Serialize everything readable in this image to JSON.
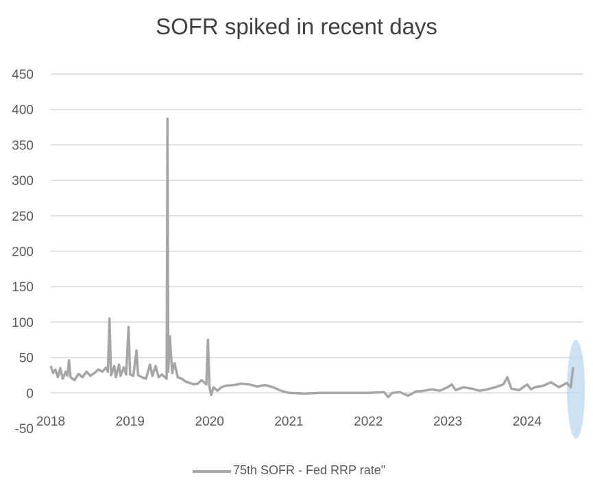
{
  "chart_data": {
    "type": "line",
    "title": "SOFR spiked in recent days",
    "xlabel": "",
    "ylabel": "",
    "ylim": [
      -50,
      450
    ],
    "yticks": [
      -50,
      0,
      50,
      100,
      150,
      200,
      250,
      300,
      350,
      400,
      450
    ],
    "xlim": [
      2018,
      2024.7
    ],
    "xticks": [
      "2018",
      "2019",
      "2020",
      "2021",
      "2022",
      "2023",
      "2024"
    ],
    "grid": true,
    "legend_position": "bottom",
    "series": [
      {
        "name": "75th SOFR - Fed RRP rate\"",
        "color": "#a6a6a6",
        "points": [
          [
            2018.0,
            38
          ],
          [
            2018.03,
            28
          ],
          [
            2018.06,
            33
          ],
          [
            2018.09,
            22
          ],
          [
            2018.12,
            35
          ],
          [
            2018.15,
            20
          ],
          [
            2018.19,
            30
          ],
          [
            2018.21,
            24
          ],
          [
            2018.23,
            46
          ],
          [
            2018.25,
            22
          ],
          [
            2018.3,
            18
          ],
          [
            2018.35,
            27
          ],
          [
            2018.4,
            22
          ],
          [
            2018.45,
            30
          ],
          [
            2018.5,
            24
          ],
          [
            2018.55,
            28
          ],
          [
            2018.6,
            33
          ],
          [
            2018.65,
            30
          ],
          [
            2018.7,
            36
          ],
          [
            2018.72,
            30
          ],
          [
            2018.74,
            105
          ],
          [
            2018.76,
            25
          ],
          [
            2018.8,
            38
          ],
          [
            2018.82,
            22
          ],
          [
            2018.86,
            40
          ],
          [
            2018.88,
            24
          ],
          [
            2018.92,
            36
          ],
          [
            2018.95,
            26
          ],
          [
            2018.98,
            93
          ],
          [
            2019.0,
            26
          ],
          [
            2019.04,
            24
          ],
          [
            2019.08,
            60
          ],
          [
            2019.1,
            25
          ],
          [
            2019.15,
            22
          ],
          [
            2019.2,
            20
          ],
          [
            2019.25,
            40
          ],
          [
            2019.28,
            24
          ],
          [
            2019.32,
            38
          ],
          [
            2019.36,
            22
          ],
          [
            2019.4,
            26
          ],
          [
            2019.44,
            22
          ],
          [
            2019.46,
            20
          ],
          [
            2019.47,
            387
          ],
          [
            2019.48,
            30
          ],
          [
            2019.5,
            80
          ],
          [
            2019.53,
            28
          ],
          [
            2019.56,
            42
          ],
          [
            2019.6,
            22
          ],
          [
            2019.65,
            20
          ],
          [
            2019.7,
            16
          ],
          [
            2019.75,
            14
          ],
          [
            2019.8,
            12
          ],
          [
            2019.85,
            13
          ],
          [
            2019.9,
            18
          ],
          [
            2019.96,
            12
          ],
          [
            2019.98,
            75
          ],
          [
            2020.0,
            8
          ],
          [
            2020.02,
            -3
          ],
          [
            2020.05,
            8
          ],
          [
            2020.1,
            3
          ],
          [
            2020.15,
            8
          ],
          [
            2020.2,
            10
          ],
          [
            2020.3,
            11
          ],
          [
            2020.4,
            13
          ],
          [
            2020.5,
            12
          ],
          [
            2020.6,
            9
          ],
          [
            2020.7,
            11
          ],
          [
            2020.8,
            8
          ],
          [
            2020.9,
            3
          ],
          [
            2021.0,
            0
          ],
          [
            2021.2,
            -1
          ],
          [
            2021.4,
            0
          ],
          [
            2021.6,
            0
          ],
          [
            2021.8,
            0
          ],
          [
            2022.0,
            0
          ],
          [
            2022.2,
            1
          ],
          [
            2022.25,
            -6
          ],
          [
            2022.3,
            0
          ],
          [
            2022.4,
            1
          ],
          [
            2022.5,
            -4
          ],
          [
            2022.6,
            2
          ],
          [
            2022.7,
            3
          ],
          [
            2022.8,
            5
          ],
          [
            2022.9,
            3
          ],
          [
            2023.0,
            8
          ],
          [
            2023.05,
            12
          ],
          [
            2023.1,
            4
          ],
          [
            2023.2,
            8
          ],
          [
            2023.3,
            6
          ],
          [
            2023.4,
            3
          ],
          [
            2023.5,
            5
          ],
          [
            2023.6,
            8
          ],
          [
            2023.7,
            12
          ],
          [
            2023.75,
            22
          ],
          [
            2023.8,
            6
          ],
          [
            2023.9,
            4
          ],
          [
            2024.0,
            12
          ],
          [
            2024.05,
            5
          ],
          [
            2024.1,
            8
          ],
          [
            2024.2,
            10
          ],
          [
            2024.3,
            15
          ],
          [
            2024.4,
            8
          ],
          [
            2024.5,
            14
          ],
          [
            2024.55,
            8
          ],
          [
            2024.58,
            36
          ]
        ]
      }
    ],
    "highlight": {
      "x": 2024.58,
      "y": 10,
      "color": "#bdd7ee"
    }
  }
}
